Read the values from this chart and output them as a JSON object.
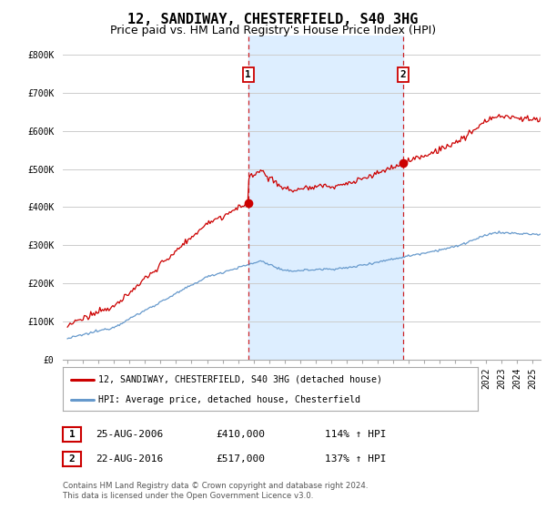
{
  "title": "12, SANDIWAY, CHESTERFIELD, S40 3HG",
  "subtitle": "Price paid vs. HM Land Registry's House Price Index (HPI)",
  "ylim": [
    0,
    850000
  ],
  "yticks": [
    0,
    100000,
    200000,
    300000,
    400000,
    500000,
    600000,
    700000,
    800000
  ],
  "ytick_labels": [
    "£0",
    "£100K",
    "£200K",
    "£300K",
    "£400K",
    "£500K",
    "£600K",
    "£700K",
    "£800K"
  ],
  "sale1_year": 2006.65,
  "sale1_price": 410000,
  "sale1_label": "1",
  "sale1_date": "25-AUG-2006",
  "sale1_hpi": "114% ↑ HPI",
  "sale2_year": 2016.65,
  "sale2_price": 517000,
  "sale2_label": "2",
  "sale2_date": "22-AUG-2016",
  "sale2_hpi": "137% ↑ HPI",
  "property_color": "#cc0000",
  "hpi_color": "#6699cc",
  "shade_color": "#ddeeff",
  "legend_label1": "12, SANDIWAY, CHESTERFIELD, S40 3HG (detached house)",
  "legend_label2": "HPI: Average price, detached house, Chesterfield",
  "footer": "Contains HM Land Registry data © Crown copyright and database right 2024.\nThis data is licensed under the Open Government Licence v3.0.",
  "background_color": "#ffffff",
  "grid_color": "#cccccc",
  "title_fontsize": 11,
  "subtitle_fontsize": 9,
  "tick_fontsize": 7,
  "xlim_start": 1994.7,
  "xlim_end": 2025.5
}
